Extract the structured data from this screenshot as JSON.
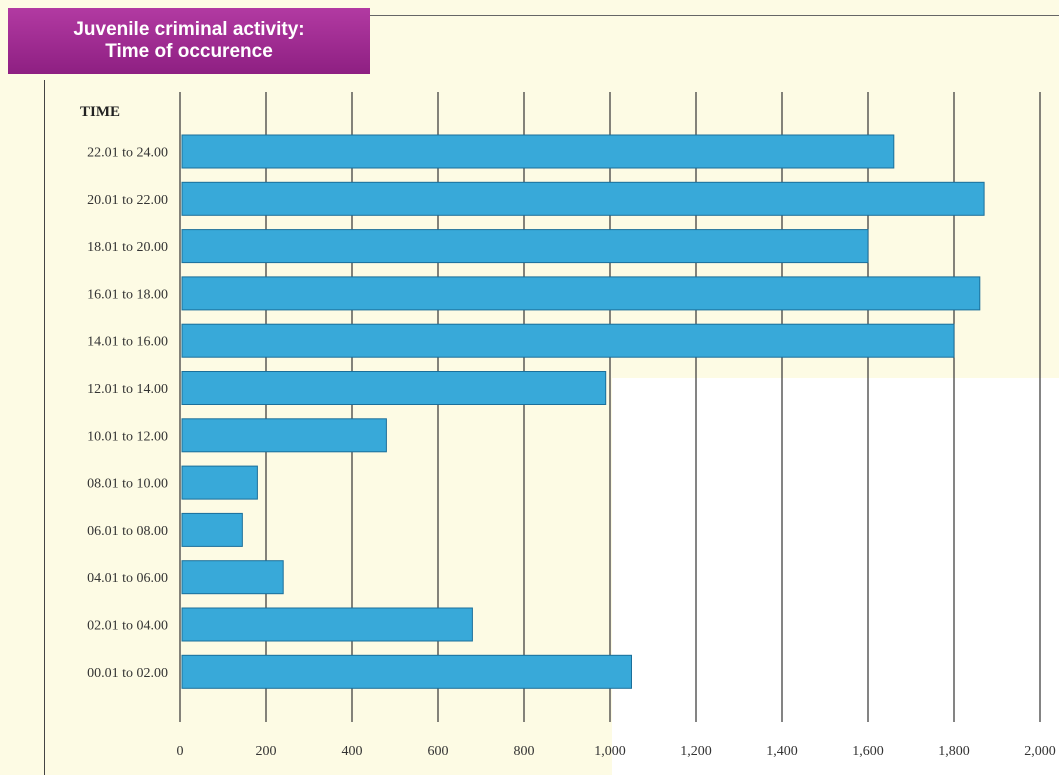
{
  "title": {
    "line1": "Juvenile criminal activity:",
    "line2": "Time of occurence"
  },
  "y_header": "TIME",
  "colors": {
    "bar": "#38a9d9",
    "bar_border": "#1b6f9a",
    "title_bg": "#9c2a8e",
    "panel_bg": "#fdfbe4",
    "grid": "#333333"
  },
  "chart_data": {
    "type": "bar",
    "orientation": "horizontal",
    "title": "Juvenile criminal activity: Time of occurence",
    "ylabel": "TIME",
    "xlabel": "",
    "categories": [
      "22.01 to 24.00",
      "20.01 to 22.00",
      "18.01 to 20.00",
      "16.01 to 18.00",
      "14.01 to 16.00",
      "12.01 to 14.00",
      "10.01 to 12.00",
      "08.01 to 10.00",
      "06.01 to 08.00",
      "04.01 to 06.00",
      "02.01 to 04.00",
      "00.01 to 02.00"
    ],
    "values": [
      1660,
      1870,
      1600,
      1860,
      1800,
      990,
      480,
      180,
      145,
      240,
      680,
      1050
    ],
    "xlim": [
      0,
      2000
    ],
    "xticks": [
      0,
      200,
      400,
      600,
      800,
      1000,
      1200,
      1400,
      1600,
      1800,
      2000
    ],
    "xtick_labels": [
      "0",
      "200",
      "400",
      "600",
      "800",
      "1,000",
      "1,200",
      "1,400",
      "1,600",
      "1,800",
      "2,000"
    ],
    "grid": "vertical lines"
  }
}
